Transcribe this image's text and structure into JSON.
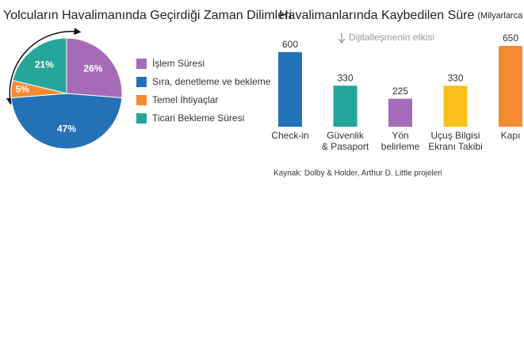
{
  "chart_data": [
    {
      "type": "pie",
      "title": "Yolcuların Havalimanında Geçirdiği Zaman Dilimleri",
      "categories": [
        "İşlem Süresi",
        "Sıra, denetleme ve bekleme",
        "Temel İhtiyaçlar",
        "Ticari Bekleme Süresi"
      ],
      "values": [
        26,
        47,
        5,
        21
      ],
      "value_labels": [
        "26%",
        "47%",
        "5%",
        "21%"
      ],
      "colors": [
        "#a66bb8",
        "#2471b8",
        "#f58a2f",
        "#26a69a"
      ]
    },
    {
      "type": "bar",
      "title": "Havalimanlarında Kaybedilen Süre",
      "subtitle": "(Milyarlarca Saat)",
      "annotation": "Dijitalleşmenin etkisi",
      "source": "Kaynak: Dolby & Holder, Arthur D. Little projeleri",
      "categories": [
        "Check-in",
        "Güvenlik\n& Pasaport",
        "Yön\nbelirleme",
        "Uçuş Bilgisi\nEkranı Takibi",
        "Kapı"
      ],
      "values": [
        600,
        330,
        225,
        330,
        650
      ],
      "colors": [
        "#2471b8",
        "#26a69a",
        "#a66bb8",
        "#f9c11a",
        "#f58a2f"
      ]
    }
  ]
}
